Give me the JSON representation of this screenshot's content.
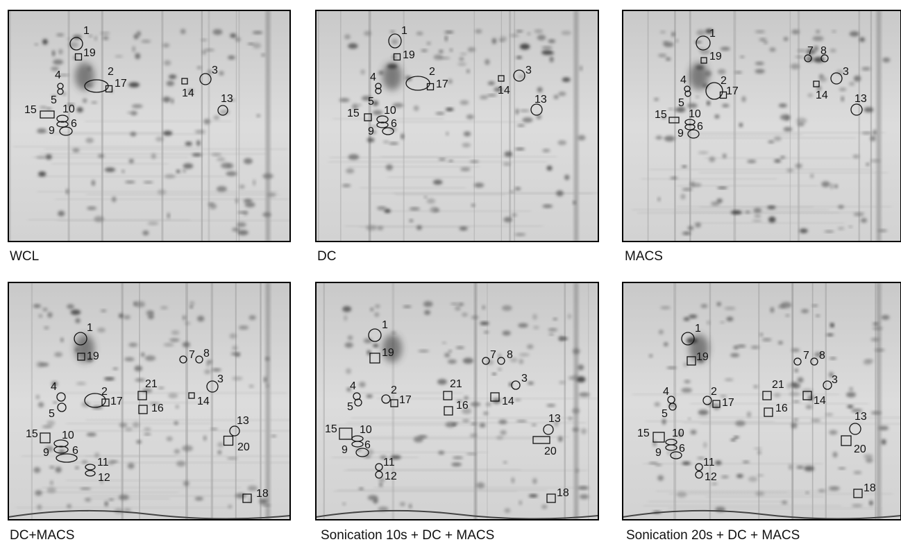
{
  "panels": [
    {
      "caption": "WCL",
      "spots": [
        "1",
        "19",
        "2",
        "17",
        "4",
        "5",
        "15",
        "10",
        "6",
        "9",
        "14",
        "3",
        "13"
      ]
    },
    {
      "caption": "DC",
      "spots": [
        "1",
        "19",
        "2",
        "17",
        "4",
        "5",
        "15",
        "10",
        "6",
        "9",
        "14",
        "3",
        "13"
      ]
    },
    {
      "caption": "MACS",
      "spots": [
        "1",
        "19",
        "7",
        "8",
        "2",
        "17",
        "4",
        "5",
        "15",
        "10",
        "6",
        "9",
        "14",
        "3",
        "13"
      ]
    },
    {
      "caption": "DC+MACS",
      "spots": [
        "1",
        "19",
        "7",
        "8",
        "2",
        "17",
        "21",
        "16",
        "4",
        "5",
        "3",
        "14",
        "13",
        "20",
        "15",
        "10",
        "6",
        "9",
        "11",
        "12",
        "18"
      ]
    },
    {
      "caption": "Sonication 10s + DC + MACS",
      "spots": [
        "1",
        "19",
        "7",
        "8",
        "2",
        "17",
        "21",
        "16",
        "14",
        "4",
        "5",
        "3",
        "13",
        "20",
        "15",
        "10",
        "6",
        "9",
        "11",
        "12",
        "18"
      ]
    },
    {
      "caption": "Sonication 20s + DC + MACS",
      "spots": [
        "1",
        "19",
        "7",
        "8",
        "2",
        "17",
        "21",
        "16",
        "14",
        "4",
        "5",
        "3",
        "13",
        "20",
        "15",
        "10",
        "6",
        "9",
        "11",
        "12",
        "18"
      ]
    }
  ]
}
